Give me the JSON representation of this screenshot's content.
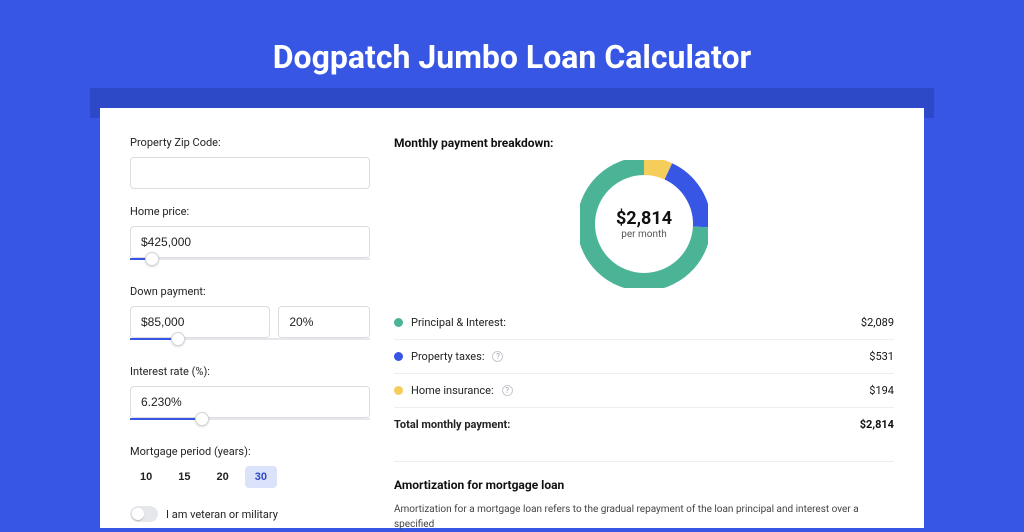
{
  "colors": {
    "page_bg": "#3756e4",
    "card_bg": "#ffffff",
    "shadow_bar": "#2d49c7",
    "input_border": "#dcdde1",
    "slider_track": "#e5e7eb",
    "slider_fill": "#3756e4",
    "pill_active_bg": "#dbe3fb",
    "pill_active_text": "#2d49c7",
    "divider": "#edeef0",
    "text_primary": "#111111",
    "text_body": "#222222",
    "text_muted": "#555555"
  },
  "header": {
    "title": "Dogpatch Jumbo Loan Calculator"
  },
  "form": {
    "zip": {
      "label": "Property Zip Code:",
      "value": ""
    },
    "price": {
      "label": "Home price:",
      "value": "$425,000",
      "slider_pct": 9
    },
    "down": {
      "label": "Down payment:",
      "amount": "$85,000",
      "percent": "20%",
      "slider_pct": 20
    },
    "rate": {
      "label": "Interest rate (%):",
      "value": "6.230%",
      "slider_pct": 30
    },
    "period": {
      "label": "Mortgage period (years):",
      "options": [
        "10",
        "15",
        "20",
        "30"
      ],
      "active_index": 3
    },
    "veteran": {
      "label": "I am veteran or military",
      "checked": false
    }
  },
  "chart": {
    "type": "donut",
    "title": "Monthly payment breakdown:",
    "center_value": "$2,814",
    "center_sub": "per month",
    "radius": 58,
    "stroke": 18,
    "background": "#ffffff",
    "slices": [
      {
        "key": "pi",
        "label": "Principal & Interest:",
        "value": "$2,089",
        "color": "#4bb396",
        "fraction": 0.742
      },
      {
        "key": "tax",
        "label": "Property taxes:",
        "value": "$531",
        "color": "#3756e4",
        "fraction": 0.189,
        "info": true
      },
      {
        "key": "ins",
        "label": "Home insurance:",
        "value": "$194",
        "color": "#f4cd5a",
        "fraction": 0.069,
        "info": true
      }
    ],
    "total": {
      "label": "Total monthly payment:",
      "value": "$2,814"
    }
  },
  "amort": {
    "heading": "Amortization for mortgage loan",
    "body": "Amortization for a mortgage loan refers to the gradual repayment of the loan principal and interest over a specified"
  }
}
